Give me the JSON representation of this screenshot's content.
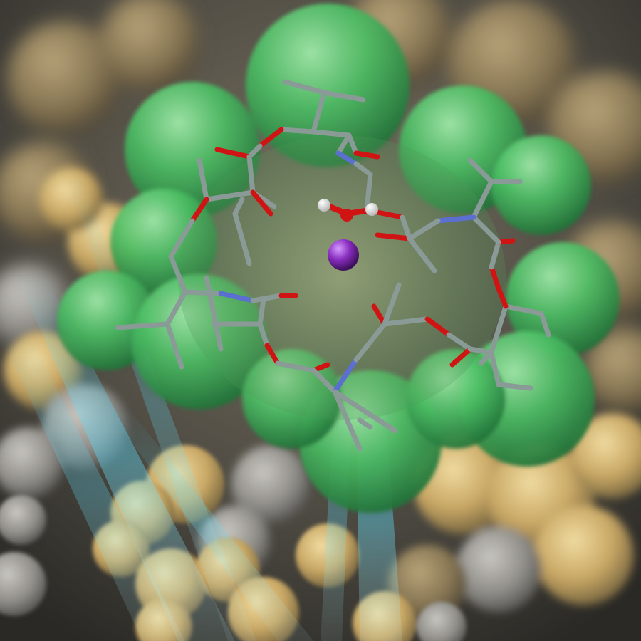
{
  "scene": {
    "colors": {
      "background_top": "#6b6357",
      "background_bottom": "#2e2c28",
      "tan_surface": "#d9bd7a",
      "tan_shadow": "#6e5e3c",
      "green_surface": "#3fae5a",
      "green_highlight": "#9fe8a8",
      "carbon_gray": "#8a9a96",
      "oxygen_red": "#d01414",
      "nitrogen_blue": "#5a6fd0",
      "hydrogen_white": "#f2f2f2",
      "potassium_purple": "#8a2ec0",
      "light_beam_cyan": "#5fe0ff"
    },
    "icons": {
      "central_ion": "purple-sphere-icon",
      "water_molecule": "water-molecule-icon"
    }
  }
}
